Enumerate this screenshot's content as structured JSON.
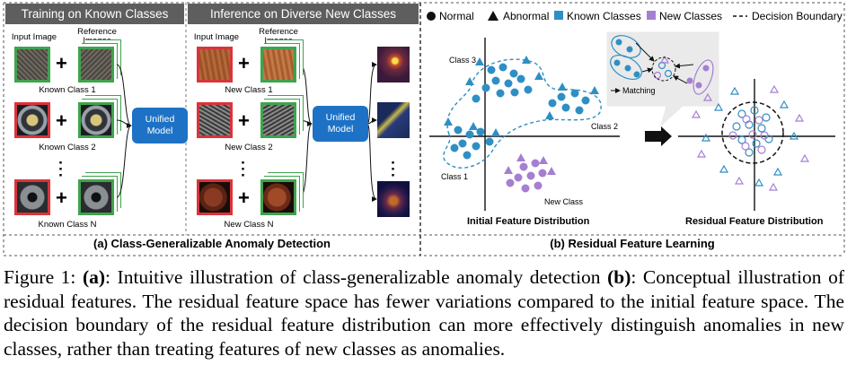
{
  "panel_a": {
    "header_left": "Training on Known Classes",
    "header_right": "Inference on Diverse New Classes",
    "input_image_label": "Input Image",
    "reference_images_label": "Reference\nImages",
    "known_class_1": "Known Class 1",
    "known_class_2": "Known Class 2",
    "known_class_n": "Known Class N",
    "new_class_1": "New Class 1",
    "new_class_2": "New Class 2",
    "new_class_n": "New Class N",
    "model_label": "Unified\nModel",
    "caption": "(a) Class-Generalizable Anomaly Detection",
    "colors": {
      "header": "#5e5e5e",
      "model": "#1e72c5",
      "normal_border": "#3fa34d",
      "abnormal_border": "#d9343a"
    }
  },
  "panel_b": {
    "legend": {
      "normal": "Normal",
      "abnormal": "Abnormal",
      "known": "Known Classes",
      "new": "New Classes",
      "boundary": "Decision Boundary"
    },
    "class3": "Class 3",
    "class2": "Class 2",
    "class1": "Class 1",
    "new_class": "New Class",
    "matching": "Matching",
    "initial_title": "Initial Feature Distribution",
    "residual_title": "Residual Feature Distribution",
    "caption": "(b) Residual Feature Learning",
    "colors": {
      "known": "#2f8fc4",
      "new": "#a57fd2"
    }
  },
  "caption": {
    "fig": "Figure 1:",
    "a_tag": "(a)",
    "a_text": ": Intuitive illustration of class-generalizable anomaly detection",
    "b_tag": "(b)",
    "b_text": ": Conceptual illustration of residual features. The residual feature space has fewer variations compared to the initial feature space. The decision boundary of the residual feature distribution can more effectively distinguish anomalies in new classes, rather than treating features of new classes as anomalies."
  }
}
